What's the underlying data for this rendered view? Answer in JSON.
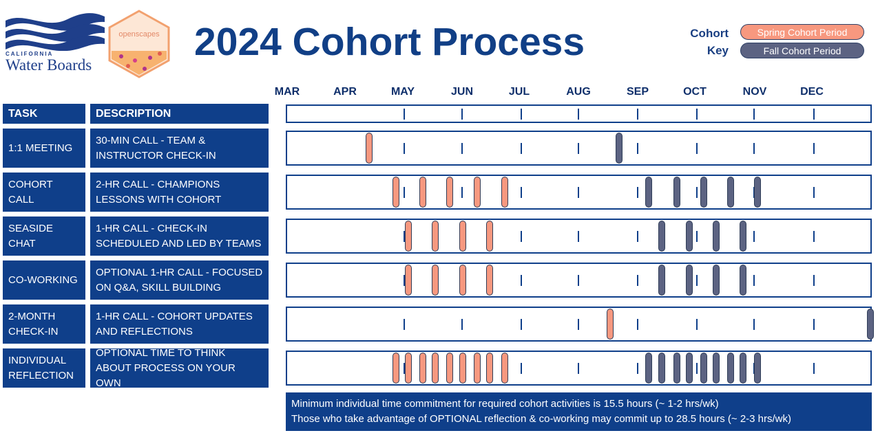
{
  "logos": {
    "water_boards_small": "CALIFORNIA",
    "water_boards_big": "Water Boards",
    "openscapes": "openscapes"
  },
  "title": "2024 Cohort Process",
  "key": {
    "label_line1": "Cohort",
    "label_line2": "Key",
    "spring": "Spring Cohort Period",
    "fall": "Fall Cohort Period",
    "spring_color": "#f7987f",
    "fall_color": "#5c6382",
    "accent": "#0f3f8a"
  },
  "months": [
    "MAR",
    "APR",
    "MAY",
    "JUN",
    "JUL",
    "AUG",
    "SEP",
    "OCT",
    "NOV",
    "DEC"
  ],
  "table": {
    "header_task": "TASK",
    "header_description": "DESCRIPTION",
    "rows": [
      {
        "task": "1:1 MEETING",
        "description": "30-MIN CALL - TEAM & INSTRUCTOR CHECK-IN"
      },
      {
        "task": "COHORT CALL",
        "description": "2-HR CALL - CHAMPIONS LESSONS WITH COHORT"
      },
      {
        "task": "SEASIDE CHAT",
        "description": "1-HR CALL - CHECK-IN SCHEDULED AND LED BY TEAMS"
      },
      {
        "task": "CO-WORKING",
        "description": "OPTIONAL 1-HR CALL - FOCUSED ON Q&A, SKILL BUILDING"
      },
      {
        "task": "2-MONTH CHECK-IN",
        "description": "1-HR CALL - COHORT UPDATES AND REFLECTIONS"
      },
      {
        "task": "INDIVIDUAL REFLECTION",
        "description": "OPTIONAL TIME TO THINK ABOUT PROCESS ON YOUR OWN"
      }
    ]
  },
  "timeline": {
    "month_index_comment_free": true,
    "rows": [
      {
        "spring": [
          0.4
        ],
        "fall": [
          4.7
        ]
      },
      {
        "spring": [
          0.87,
          1.33,
          1.8,
          2.27,
          2.73
        ],
        "fall": [
          5.2,
          5.67,
          6.13,
          6.6,
          7.07
        ]
      },
      {
        "spring": [
          1.08,
          1.55,
          2.02,
          2.48
        ],
        "fall": [
          5.42,
          5.88,
          6.35,
          6.82
        ]
      },
      {
        "spring": [
          1.08,
          1.55,
          2.02,
          2.48
        ],
        "fall": [
          5.42,
          5.88,
          6.35,
          6.82
        ]
      },
      {
        "spring": [
          4.55
        ],
        "fall": [
          9.08
        ]
      },
      {
        "spring": [
          0.87,
          1.08,
          1.33,
          1.55,
          1.8,
          2.02,
          2.27,
          2.48,
          2.73
        ],
        "fall": [
          5.2,
          5.42,
          5.67,
          5.88,
          6.13,
          6.35,
          6.6,
          6.82,
          7.07
        ]
      }
    ]
  },
  "note": {
    "line1": "Minimum individual time commitment for required cohort activities is 15.5 hours (~ 1-2 hrs/wk)",
    "line2": "Those who take advantage of OPTIONAL reflection & co-working may commit up to 28.5 hours (~ 2-3 hrs/wk)"
  }
}
